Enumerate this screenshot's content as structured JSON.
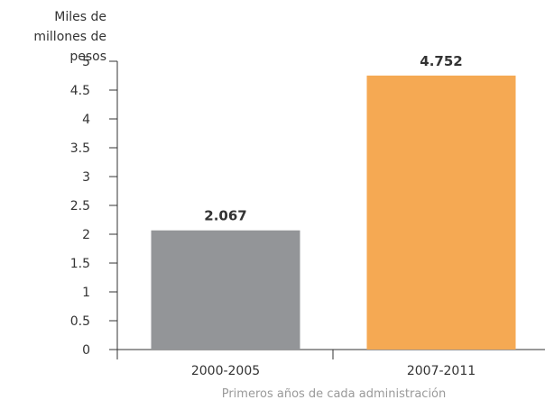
{
  "chart_data": {
    "type": "bar",
    "ylabel": "Miles de millones de pesos",
    "xlabel": "Primeros años de cada administración",
    "categories": [
      "2000-2005",
      "2007-2011"
    ],
    "values": [
      2.067,
      4.752
    ],
    "value_labels": [
      "2.067",
      "4.752"
    ],
    "bar_colors": [
      "#939598",
      "#f5a953"
    ],
    "ylim": [
      0,
      5
    ],
    "yticks": [
      "0",
      "0.5",
      "1",
      "1.5",
      "2",
      "2.5",
      "3",
      "3.5",
      "4",
      "4.5",
      "5"
    ],
    "grid": false,
    "legend": "none"
  }
}
